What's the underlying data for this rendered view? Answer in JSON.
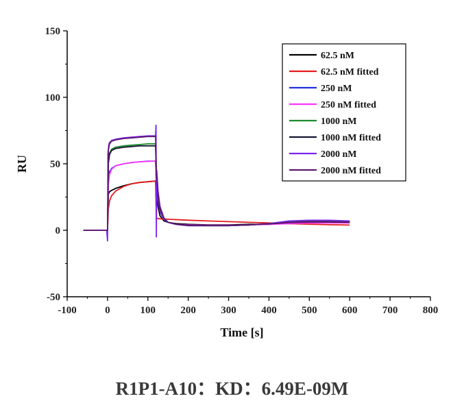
{
  "caption": "R1P1-A10：KD：6.49E-09M",
  "chart_data": {
    "type": "line",
    "xlabel": "Time [s]",
    "ylabel": "RU",
    "xlim": [
      -100,
      800
    ],
    "ylim": [
      -50,
      150
    ],
    "xticks": [
      -100,
      0,
      100,
      200,
      300,
      400,
      500,
      600,
      700,
      800
    ],
    "yticks": [
      -50,
      0,
      50,
      100,
      150
    ],
    "legend_position": "top-right",
    "series": [
      {
        "name": "62.5 nM",
        "color": "#000000",
        "x": [
          -60,
          -2,
          0,
          2,
          5,
          10,
          20,
          40,
          60,
          80,
          100,
          119,
          121,
          125,
          130,
          140,
          150,
          170,
          200,
          250,
          300,
          350,
          400,
          450,
          500,
          550,
          600
        ],
        "y": [
          0,
          0,
          0,
          27,
          29,
          30,
          31.5,
          33.5,
          35,
          36,
          36.5,
          37,
          28,
          18,
          11,
          7,
          6,
          5,
          4.5,
          4,
          4,
          4.5,
          4.5,
          5.5,
          6,
          6,
          6
        ]
      },
      {
        "name": "62.5 nM fitted",
        "color": "#e41a1c",
        "x": [
          -60,
          -2,
          0,
          2,
          5,
          10,
          20,
          40,
          60,
          80,
          100,
          119,
          121,
          130,
          150,
          200,
          250,
          300,
          350,
          400,
          450,
          500,
          550,
          600
        ],
        "y": [
          0,
          0,
          0,
          16,
          22,
          26,
          29.5,
          33,
          35,
          36,
          36.5,
          37,
          9,
          8.6,
          8.3,
          7.6,
          7,
          6.5,
          6,
          5.5,
          5,
          4.6,
          4.2,
          3.9
        ]
      },
      {
        "name": "250 nM",
        "color": "#1f2de0",
        "x": [
          -60,
          -2,
          0,
          2,
          5,
          10,
          20,
          40,
          60,
          80,
          100,
          119,
          121,
          125,
          130,
          140,
          150,
          170,
          200,
          250,
          300,
          350,
          400,
          450,
          500,
          550,
          600
        ],
        "y": [
          0,
          0,
          0,
          38,
          44,
          46.5,
          48.5,
          50,
          51,
          51.5,
          52,
          52,
          34,
          22,
          14,
          8,
          6,
          4.5,
          3.5,
          3.5,
          3.5,
          4,
          5,
          6.5,
          7,
          7,
          6.5
        ]
      },
      {
        "name": "250 nM fitted",
        "color": "#ff33ff",
        "x": [
          -60,
          -2,
          0,
          2,
          5,
          10,
          20,
          40,
          60,
          80,
          100,
          119,
          121,
          125,
          130,
          140,
          150,
          170,
          200,
          250,
          300,
          350,
          400,
          450,
          500,
          550,
          600
        ],
        "y": [
          0,
          0,
          0,
          34,
          42,
          46,
          48.5,
          50,
          51,
          51.5,
          51.8,
          52,
          36,
          24,
          15,
          8.5,
          6,
          4.5,
          4,
          3.8,
          3.8,
          4,
          4.5,
          5,
          5.5,
          5.5,
          5.5
        ]
      },
      {
        "name": "1000 nM",
        "color": "#1b8a2e",
        "x": [
          -60,
          -2,
          0,
          2,
          5,
          10,
          20,
          40,
          60,
          80,
          100,
          119,
          121,
          125,
          130,
          140,
          150,
          170,
          200,
          250,
          300,
          350,
          400,
          450,
          500,
          550,
          600
        ],
        "y": [
          0,
          0,
          0,
          52,
          58,
          61,
          62.5,
          63.5,
          64,
          64.5,
          65,
          65,
          42,
          26,
          16,
          9,
          6,
          4.5,
          3.5,
          3.5,
          3.5,
          4,
          5,
          6.5,
          7,
          7,
          6.5
        ]
      },
      {
        "name": "1000 nM fitted",
        "color": "#141432",
        "x": [
          -60,
          -2,
          0,
          2,
          5,
          10,
          20,
          40,
          60,
          80,
          100,
          119,
          121,
          125,
          130,
          140,
          150,
          170,
          200,
          250,
          300,
          350,
          400,
          450,
          500,
          550,
          600
        ],
        "y": [
          0,
          0,
          0,
          50,
          57,
          60,
          61.5,
          62.5,
          63,
          63.5,
          63.5,
          63.5,
          42,
          26,
          16,
          9,
          6,
          4.5,
          3.8,
          3.6,
          3.6,
          4,
          4.8,
          5.8,
          6.3,
          6.3,
          6
        ]
      },
      {
        "name": "2000 nM",
        "color": "#7b22f0",
        "x": [
          -60,
          -2,
          0,
          1,
          3,
          5,
          10,
          20,
          40,
          60,
          80,
          100,
          119,
          120,
          121,
          122,
          125,
          130,
          140,
          150,
          170,
          200,
          250,
          300,
          350,
          400,
          450,
          500,
          550,
          600
        ],
        "y": [
          0,
          0,
          -8,
          58,
          64,
          66,
          67.5,
          68.5,
          69.5,
          70,
          70.5,
          71,
          71,
          79,
          -5,
          45,
          30,
          18,
          9,
          6,
          4.5,
          3.5,
          3.5,
          3.5,
          4,
          5,
          7,
          7.5,
          7.5,
          7
        ]
      },
      {
        "name": "2000 nM fitted",
        "color": "#5c1a6e",
        "x": [
          -60,
          -2,
          0,
          2,
          5,
          10,
          20,
          40,
          60,
          80,
          100,
          119,
          121,
          125,
          130,
          140,
          150,
          170,
          200,
          250,
          300,
          350,
          400,
          450,
          500,
          550,
          600
        ],
        "y": [
          0,
          0,
          0,
          60,
          65,
          67,
          68,
          69,
          69.5,
          70,
          70.5,
          70.5,
          46,
          28,
          17,
          9,
          6,
          4.5,
          3.6,
          3.5,
          3.5,
          4,
          4.8,
          6,
          6.5,
          6.5,
          6.2
        ]
      }
    ]
  }
}
